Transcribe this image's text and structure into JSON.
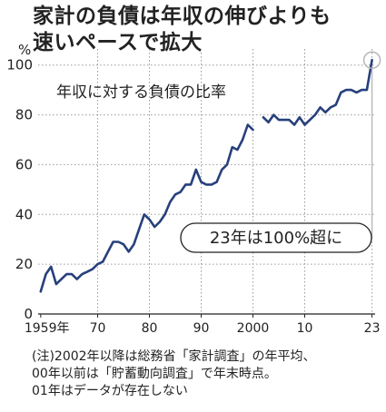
{
  "title_lines": [
    "家計の負債は年収の伸びよりも",
    "速いペースで拡大"
  ],
  "chart_data": {
    "type": "line",
    "unit_label": "%",
    "series_label": "年収に対する負債の比率",
    "callout": "23年は100%超に",
    "ylim": [
      0,
      105
    ],
    "yticks": [
      0,
      20,
      40,
      60,
      80,
      100
    ],
    "xlim": [
      1958.5,
      2023.6
    ],
    "xticks": [
      {
        "x": 1959,
        "label": "1959年"
      },
      {
        "x": 1970,
        "label": "70"
      },
      {
        "x": 1980,
        "label": "80"
      },
      {
        "x": 1990,
        "label": "90"
      },
      {
        "x": 2000,
        "label": "2000"
      },
      {
        "x": 2010,
        "label": "10"
      },
      {
        "x": 2023,
        "label": "23"
      }
    ],
    "grid": true,
    "series": [
      {
        "x": [
          1959,
          1960,
          1961,
          1962,
          1963,
          1964,
          1965,
          1966,
          1967,
          1968,
          1969,
          1970,
          1971,
          1972,
          1973,
          1974,
          1975,
          1976,
          1977,
          1978,
          1979,
          1980,
          1981,
          1982,
          1983,
          1984,
          1985,
          1986,
          1987,
          1988,
          1989,
          1990,
          1991,
          1992,
          1993,
          1994,
          1995,
          1996,
          1997,
          1998,
          1999,
          2000
        ],
        "y": [
          9,
          16,
          19,
          12,
          14,
          16,
          16,
          14,
          16,
          17,
          18,
          20,
          21,
          25,
          29,
          29,
          28,
          25,
          28,
          34,
          40,
          38,
          35,
          37,
          40,
          45,
          48,
          49,
          52,
          52,
          58,
          53,
          52,
          52,
          53,
          58,
          60,
          67,
          66,
          70,
          76,
          74
        ]
      },
      {
        "x": [
          2002,
          2003,
          2004,
          2005,
          2006,
          2007,
          2008,
          2009,
          2010,
          2011,
          2012,
          2013,
          2014,
          2015,
          2016,
          2017,
          2018,
          2019,
          2020,
          2021,
          2022,
          2023
        ],
        "y": [
          79,
          77,
          80,
          78,
          78,
          78,
          76,
          79,
          76,
          78,
          80,
          83,
          81,
          83,
          84,
          89,
          90,
          90,
          89,
          90,
          90,
          102
        ]
      }
    ]
  },
  "notes": [
    "(注)2002年以降は総務省「家計調査」の年平均、",
    "00年以前は「貯蓄動向調査」で年末時点。",
    "01年はデータが存在しない"
  ],
  "colors": {
    "line": "#27407c",
    "grid": "#9a9a9a",
    "text": "#222222",
    "highlight": "#b5b5b5"
  }
}
